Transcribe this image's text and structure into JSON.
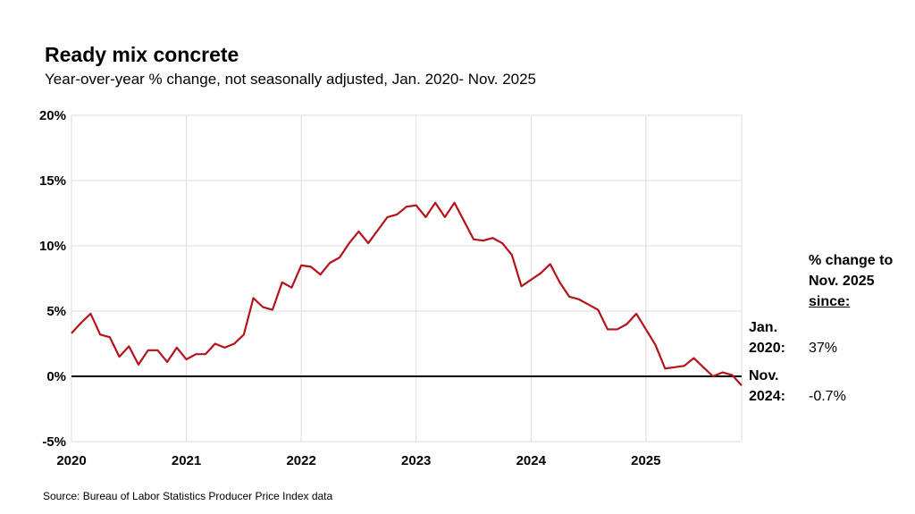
{
  "title": "Ready mix concrete",
  "subtitle": "Year-over-year % change, not seasonally adjusted, Jan. 2020- Nov. 2025",
  "source": "Source: Bureau of Labor Statistics Producer Price Index data",
  "side_panel": {
    "heading_line1": "% change to",
    "heading_line2": "Nov. 2025",
    "heading_line3": "since:",
    "rows": [
      {
        "label_line1": "Jan.",
        "label_line2": "2020:",
        "value": "37%"
      },
      {
        "label_line1": "Nov.",
        "label_line2": "2024:",
        "value": "-0.7%"
      }
    ]
  },
  "colors": {
    "line": "#b5121b",
    "zero_line": "#000000",
    "grid": "#dddddd"
  },
  "chart_data": {
    "type": "line",
    "title": "Ready mix concrete",
    "xlabel": "",
    "ylabel": "",
    "xlim": [
      "2020-01",
      "2025-11"
    ],
    "ylim": [
      -5,
      20
    ],
    "yticks": [
      -5,
      0,
      5,
      10,
      15,
      20
    ],
    "ytick_labels": [
      "-5%",
      "0%",
      "5%",
      "10%",
      "15%",
      "20%"
    ],
    "xtick_labels": [
      "2020",
      "2021",
      "2022",
      "2023",
      "2024",
      "2025"
    ],
    "grid": true,
    "legend": "none",
    "series": [
      {
        "x": [
          "2020-01",
          "2020-02",
          "2020-03",
          "2020-04",
          "2020-05",
          "2020-06",
          "2020-07",
          "2020-08",
          "2020-09",
          "2020-10",
          "2020-11",
          "2020-12",
          "2021-01",
          "2021-02",
          "2021-03",
          "2021-04",
          "2021-05",
          "2021-06",
          "2021-07",
          "2021-08",
          "2021-09",
          "2021-10",
          "2021-11",
          "2021-12",
          "2022-01",
          "2022-02",
          "2022-03",
          "2022-04",
          "2022-05",
          "2022-06",
          "2022-07",
          "2022-08",
          "2022-09",
          "2022-10",
          "2022-11",
          "2022-12",
          "2023-01",
          "2023-02",
          "2023-03",
          "2023-04",
          "2023-05",
          "2023-06",
          "2023-07",
          "2023-08",
          "2023-09",
          "2023-10",
          "2023-11",
          "2023-12",
          "2024-01",
          "2024-02",
          "2024-03",
          "2024-04",
          "2024-05",
          "2024-06",
          "2024-07",
          "2024-08",
          "2024-09",
          "2024-10",
          "2024-11",
          "2024-12",
          "2025-01",
          "2025-02",
          "2025-03",
          "2025-04",
          "2025-05",
          "2025-06",
          "2025-07",
          "2025-08",
          "2025-09",
          "2025-10",
          "2025-11"
        ],
        "values": [
          3.3,
          4.1,
          4.8,
          3.2,
          3.0,
          1.5,
          2.3,
          0.9,
          2.0,
          2.0,
          1.1,
          2.2,
          1.3,
          1.7,
          1.7,
          2.5,
          2.2,
          2.5,
          3.2,
          6.0,
          5.3,
          5.1,
          7.2,
          6.8,
          8.5,
          8.4,
          7.8,
          8.7,
          9.1,
          10.2,
          11.1,
          10.2,
          11.2,
          12.2,
          12.4,
          13.0,
          13.1,
          12.2,
          13.3,
          12.2,
          13.3,
          11.9,
          10.5,
          10.4,
          10.6,
          10.2,
          9.3,
          6.9,
          7.4,
          7.9,
          8.6,
          7.2,
          6.1,
          5.9,
          5.5,
          5.1,
          3.6,
          3.6,
          4.0,
          4.8,
          3.6,
          2.4,
          0.6,
          0.7,
          0.8,
          1.4,
          0.7,
          0.0,
          0.3,
          0.1,
          -0.7
        ]
      }
    ]
  }
}
